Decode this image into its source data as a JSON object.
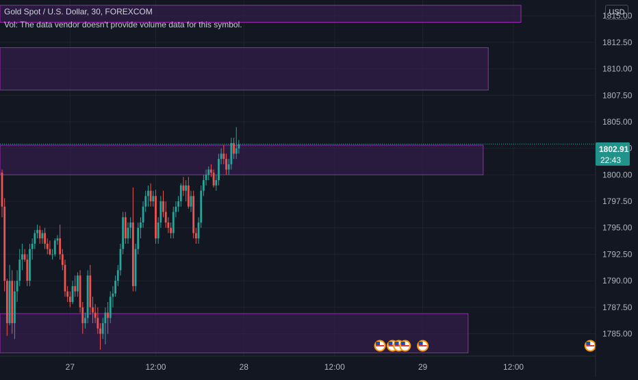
{
  "header": {
    "title": "Gold Spot / U.S. Dollar, 30, FOREXCOM",
    "volume_note": "Vol: The data vendor doesn't provide volume data for this symbol.",
    "currency": "USD"
  },
  "price_tag": {
    "price": "1802.91",
    "countdown": "22:43"
  },
  "colors": {
    "background": "#131722",
    "grid": "#1e222d",
    "up": "#26a69a",
    "down": "#ef5350",
    "zone_border": "#9c27b0",
    "zone_fill": "#3b1f55",
    "axis_text": "#b2b5be",
    "price_line": "#26a69a"
  },
  "chart_data": {
    "type": "candlestick",
    "title": "Gold Spot / U.S. Dollar, 30, FOREXCOM",
    "y_ticks": [
      "1785.00",
      "1787.50",
      "1790.00",
      "1792.50",
      "1795.00",
      "1797.50",
      "1800.00",
      "1802.50",
      "1805.00",
      "1807.50",
      "1810.00",
      "1812.50",
      "1815.00"
    ],
    "ylim": [
      1782.9,
      1816.5
    ],
    "x_ticks": [
      {
        "label": "27",
        "bar": 27
      },
      {
        "label": "12:00",
        "bar": 61
      },
      {
        "label": "28",
        "bar": 96
      },
      {
        "label": "12:00",
        "bar": 132
      },
      {
        "label": "29",
        "bar": 167
      },
      {
        "label": "12:00",
        "bar": 203
      }
    ],
    "last_price": 1802.91,
    "zones": [
      {
        "top": 1816.0,
        "bottom": 1814.4,
        "bar_start": 0,
        "bar_end": 206
      },
      {
        "top": 1812.0,
        "bottom": 1808.0,
        "bar_start": 0,
        "bar_end": 193
      },
      {
        "top": 1802.8,
        "bottom": 1800.0,
        "bar_start": 0,
        "bar_end": 191
      },
      {
        "top": 1786.9,
        "bottom": 1783.2,
        "bar_start": 0,
        "bar_end": 185
      }
    ],
    "candles": [
      [
        1800.2,
        1800.5,
        1796.0,
        1797.0
      ],
      [
        1797.0,
        1797.8,
        1789.0,
        1790.0
      ],
      [
        1790.0,
        1790.2,
        1784.8,
        1786.0
      ],
      [
        1786.0,
        1791.5,
        1785.8,
        1790.0
      ],
      [
        1790.0,
        1791.0,
        1785.0,
        1786.0
      ],
      [
        1786.0,
        1790.0,
        1784.5,
        1789.0
      ],
      [
        1789.0,
        1791.0,
        1788.0,
        1790.0
      ],
      [
        1790.0,
        1793.0,
        1789.5,
        1792.0
      ],
      [
        1792.0,
        1793.5,
        1791.0,
        1792.5
      ],
      [
        1792.5,
        1793.0,
        1791.8,
        1792.0
      ],
      [
        1792.0,
        1792.5,
        1789.5,
        1790.0
      ],
      [
        1790.0,
        1793.5,
        1789.5,
        1793.0
      ],
      [
        1793.0,
        1794.0,
        1792.0,
        1793.5
      ],
      [
        1793.5,
        1794.8,
        1793.0,
        1794.5
      ],
      [
        1794.5,
        1795.3,
        1794.0,
        1794.8
      ],
      [
        1794.8,
        1795.2,
        1793.5,
        1794.0
      ],
      [
        1794.0,
        1794.8,
        1793.5,
        1794.5
      ],
      [
        1794.5,
        1795.0,
        1793.0,
        1793.5
      ],
      [
        1793.5,
        1794.0,
        1792.5,
        1793.0
      ],
      [
        1793.0,
        1793.8,
        1792.4,
        1792.5
      ],
      [
        1792.5,
        1793.0,
        1792.0,
        1792.5
      ],
      [
        1792.5,
        1794.0,
        1792.3,
        1793.8
      ],
      [
        1793.8,
        1794.3,
        1793.4,
        1794.0
      ],
      [
        1794.0,
        1795.3,
        1792.0,
        1792.5
      ],
      [
        1792.5,
        1793.0,
        1791.0,
        1791.5
      ],
      [
        1791.5,
        1792.0,
        1788.5,
        1789.0
      ],
      [
        1789.0,
        1789.5,
        1788.0,
        1788.5
      ],
      [
        1788.5,
        1789.0,
        1787.5,
        1788.0
      ],
      [
        1788.0,
        1790.0,
        1787.8,
        1789.5
      ],
      [
        1789.5,
        1790.5,
        1788.5,
        1789.0
      ],
      [
        1789.0,
        1790.8,
        1788.5,
        1790.5
      ],
      [
        1790.5,
        1791.0,
        1787.0,
        1787.5
      ],
      [
        1787.5,
        1788.0,
        1785.0,
        1786.0
      ],
      [
        1786.0,
        1787.0,
        1785.5,
        1786.5
      ],
      [
        1786.5,
        1791.0,
        1786.0,
        1790.5
      ],
      [
        1790.5,
        1791.5,
        1786.8,
        1787.5
      ],
      [
        1787.5,
        1788.5,
        1786.0,
        1787.0
      ],
      [
        1787.0,
        1787.8,
        1786.0,
        1786.5
      ],
      [
        1786.5,
        1787.5,
        1785.0,
        1785.5
      ],
      [
        1785.5,
        1786.0,
        1783.5,
        1785.0
      ],
      [
        1785.0,
        1786.5,
        1784.5,
        1786.0
      ],
      [
        1786.0,
        1787.5,
        1784.0,
        1787.0
      ],
      [
        1787.0,
        1788.0,
        1785.0,
        1786.5
      ],
      [
        1786.5,
        1789.0,
        1786.0,
        1788.5
      ],
      [
        1788.5,
        1789.5,
        1787.5,
        1788.8
      ],
      [
        1788.8,
        1790.5,
        1788.5,
        1790.0
      ],
      [
        1790.0,
        1791.5,
        1789.5,
        1791.0
      ],
      [
        1791.0,
        1793.5,
        1790.5,
        1793.0
      ],
      [
        1793.0,
        1796.5,
        1792.5,
        1796.0
      ],
      [
        1796.0,
        1796.5,
        1793.5,
        1794.0
      ],
      [
        1794.0,
        1795.5,
        1793.5,
        1795.0
      ],
      [
        1795.0,
        1796.0,
        1794.0,
        1795.5
      ],
      [
        1795.5,
        1798.8,
        1789.0,
        1789.5
      ],
      [
        1789.5,
        1793.5,
        1789.0,
        1793.0
      ],
      [
        1793.0,
        1795.5,
        1792.5,
        1795.0
      ],
      [
        1795.0,
        1796.0,
        1794.0,
        1795.5
      ],
      [
        1795.5,
        1797.5,
        1795.0,
        1797.0
      ],
      [
        1797.0,
        1798.5,
        1796.5,
        1798.0
      ],
      [
        1798.0,
        1799.0,
        1797.0,
        1798.5
      ],
      [
        1798.5,
        1799.2,
        1797.0,
        1797.5
      ],
      [
        1797.5,
        1798.5,
        1797.0,
        1798.0
      ],
      [
        1798.0,
        1798.6,
        1793.5,
        1794.0
      ],
      [
        1794.0,
        1796.0,
        1793.5,
        1795.5
      ],
      [
        1795.5,
        1798.0,
        1795.0,
        1797.5
      ],
      [
        1797.5,
        1798.5,
        1796.0,
        1796.5
      ],
      [
        1796.5,
        1797.5,
        1795.0,
        1795.5
      ],
      [
        1795.5,
        1796.0,
        1794.5,
        1795.0
      ],
      [
        1795.0,
        1795.5,
        1794.0,
        1794.5
      ],
      [
        1794.5,
        1797.0,
        1794.0,
        1796.5
      ],
      [
        1796.5,
        1797.5,
        1796.0,
        1797.0
      ],
      [
        1797.0,
        1798.0,
        1796.5,
        1797.5
      ],
      [
        1797.5,
        1799.2,
        1797.0,
        1799.0
      ],
      [
        1799.0,
        1799.8,
        1798.0,
        1798.5
      ],
      [
        1798.5,
        1799.5,
        1797.5,
        1799.0
      ],
      [
        1799.0,
        1799.8,
        1796.8,
        1797.0
      ],
      [
        1797.0,
        1798.5,
        1796.5,
        1798.0
      ],
      [
        1798.0,
        1798.5,
        1794.0,
        1794.5
      ],
      [
        1794.5,
        1795.0,
        1793.5,
        1794.0
      ],
      [
        1794.0,
        1796.0,
        1793.5,
        1795.5
      ],
      [
        1795.5,
        1799.0,
        1795.0,
        1798.5
      ],
      [
        1798.5,
        1800.0,
        1798.0,
        1799.5
      ],
      [
        1799.5,
        1800.5,
        1799.0,
        1800.0
      ],
      [
        1800.0,
        1800.8,
        1799.5,
        1800.5
      ],
      [
        1800.5,
        1801.0,
        1799.8,
        1800.2
      ],
      [
        1800.2,
        1800.5,
        1798.8,
        1799.0
      ],
      [
        1799.0,
        1800.0,
        1798.5,
        1799.5
      ],
      [
        1799.5,
        1802.0,
        1799.0,
        1801.5
      ],
      [
        1801.5,
        1802.5,
        1801.0,
        1802.0
      ],
      [
        1802.0,
        1802.8,
        1801.0,
        1801.5
      ],
      [
        1801.5,
        1802.0,
        1800.0,
        1800.5
      ],
      [
        1800.5,
        1801.5,
        1800.0,
        1801.0
      ],
      [
        1801.0,
        1803.5,
        1800.5,
        1803.0
      ],
      [
        1803.0,
        1803.5,
        1801.5,
        1802.0
      ],
      [
        1802.0,
        1804.5,
        1801.5,
        1802.5
      ],
      [
        1802.5,
        1803.3,
        1802.0,
        1802.9
      ]
    ]
  }
}
